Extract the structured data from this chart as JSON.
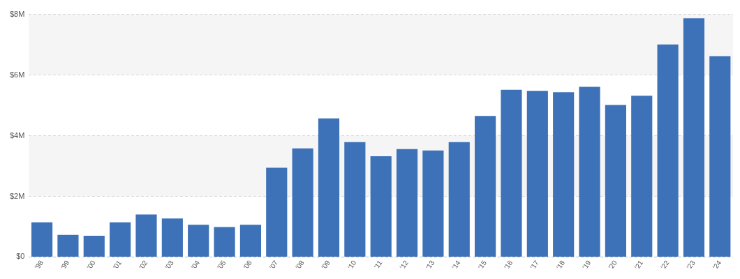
{
  "chart_data": {
    "type": "bar",
    "categories": [
      "'98",
      "'99",
      "'00",
      "'01",
      "'02",
      "'03",
      "'04",
      "'05",
      "'06",
      "'07",
      "'08",
      "'09",
      "'10",
      "'11",
      "'12",
      "'13",
      "'14",
      "'15",
      "'16",
      "'17",
      "'18",
      "'19",
      "'20",
      "'21",
      "'22",
      "'23",
      "'24"
    ],
    "values": [
      1.14,
      0.73,
      0.7,
      1.14,
      1.4,
      1.27,
      1.06,
      0.99,
      1.06,
      2.94,
      3.58,
      4.57,
      3.79,
      3.32,
      3.56,
      3.51,
      3.79,
      4.65,
      5.51,
      5.48,
      5.43,
      5.61,
      5.01,
      5.32,
      7.01,
      7.87,
      6.62
    ],
    "color": "#3d71b8",
    "ylim": [
      0,
      8
    ],
    "yticks": [
      {
        "value": 0,
        "label": "$0"
      },
      {
        "value": 2,
        "label": "$2M"
      },
      {
        "value": 4,
        "label": "$4M"
      },
      {
        "value": 6,
        "label": "$6M"
      },
      {
        "value": 8,
        "label": "$8M"
      }
    ],
    "grid": "y"
  }
}
